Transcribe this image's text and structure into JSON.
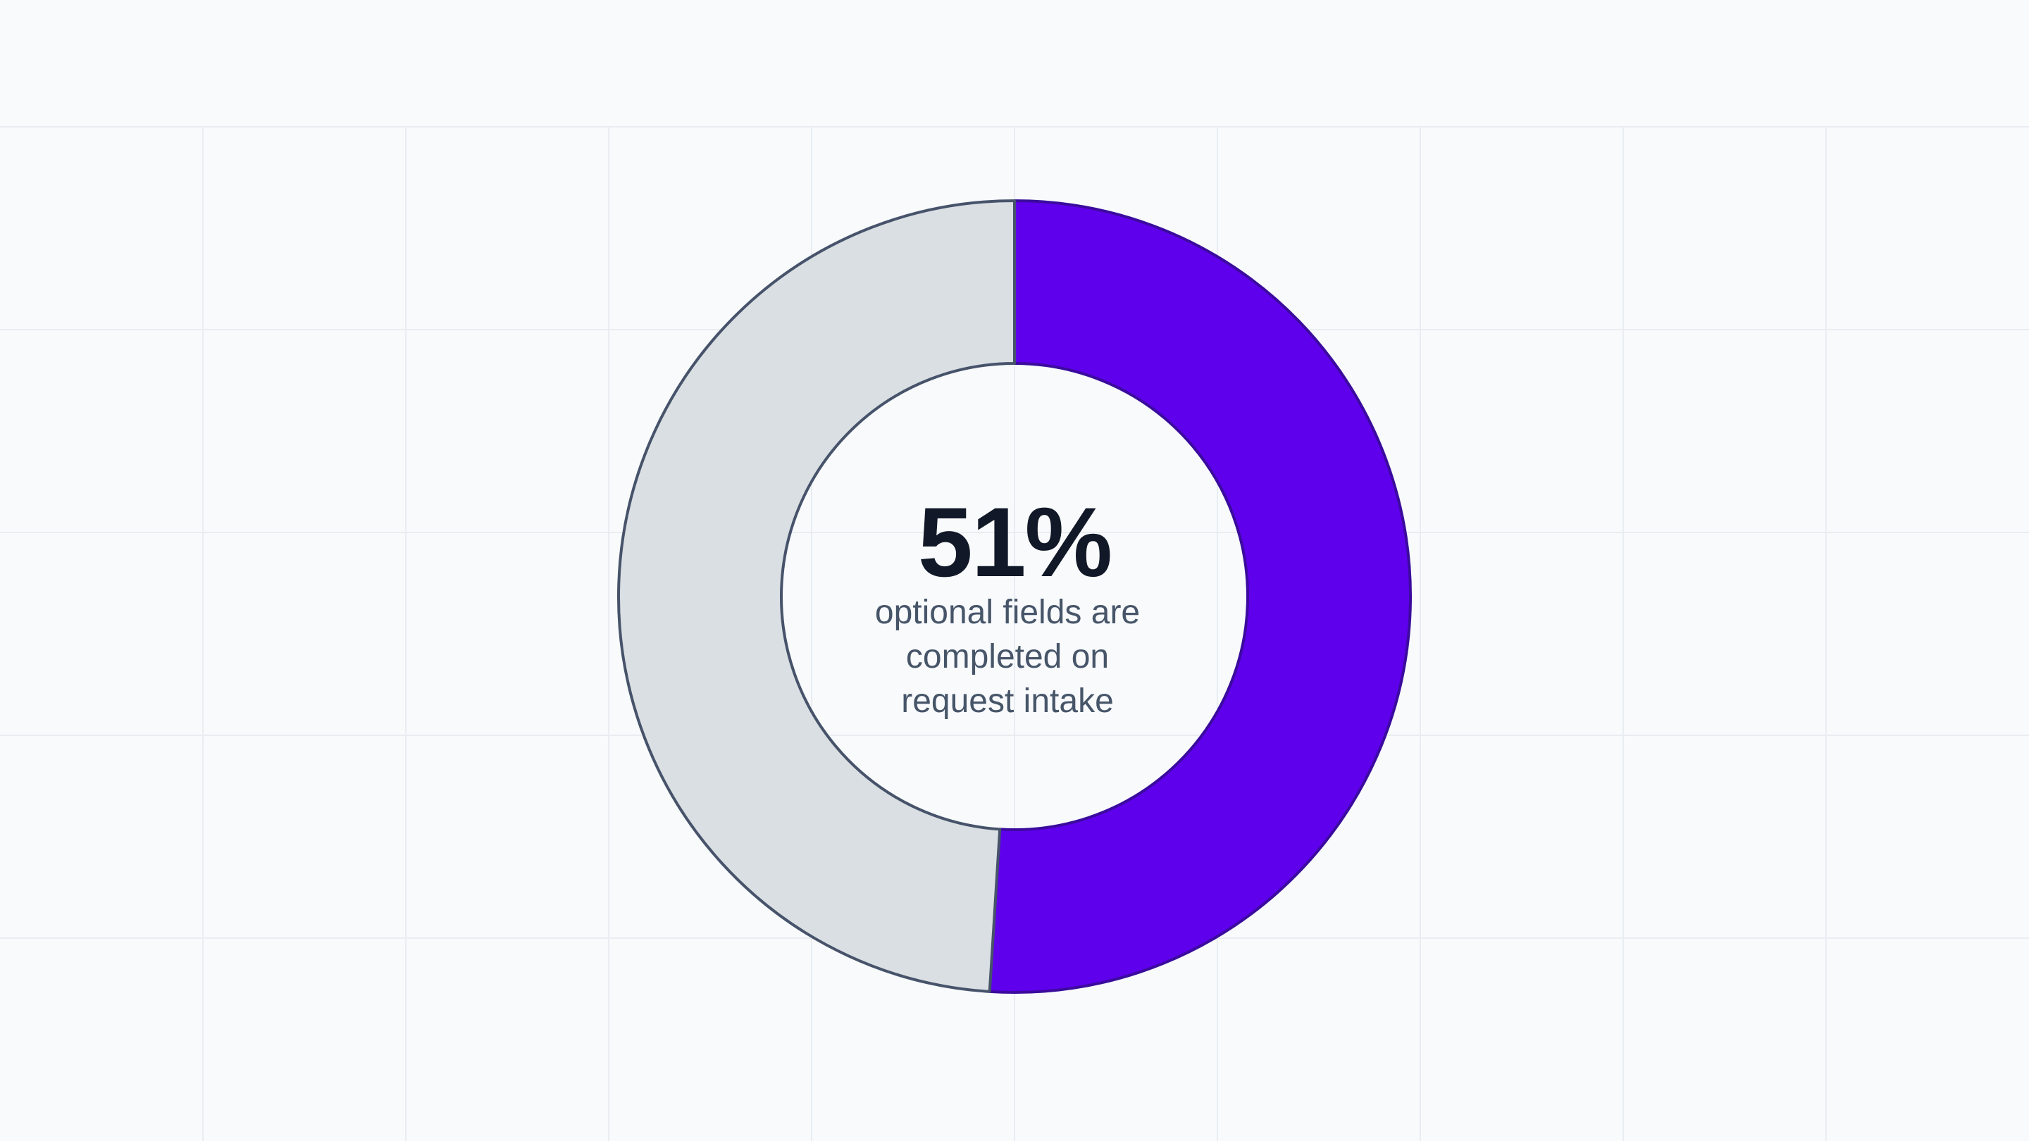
{
  "chart_data": {
    "type": "donut",
    "values": [
      51,
      49
    ],
    "value_labels": [
      "51%",
      null
    ],
    "colors": [
      "#5f00ec",
      "#dadfe3"
    ],
    "caption": "optional fields are completed on request intake"
  }
}
